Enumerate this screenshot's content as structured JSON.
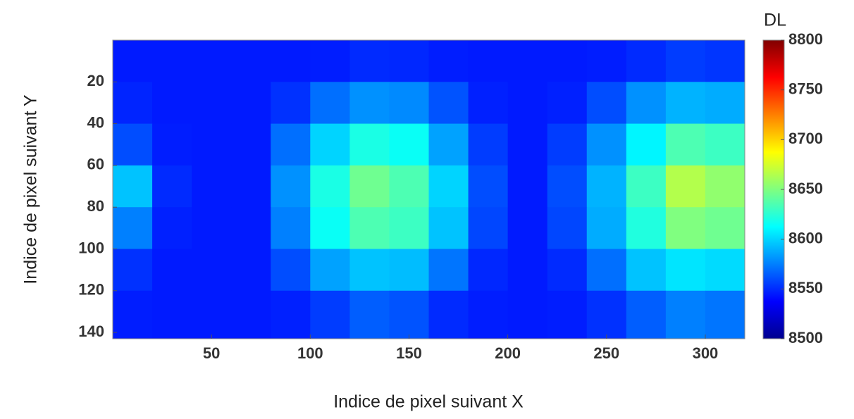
{
  "chart_data": {
    "type": "heatmap",
    "x_label": "Indice de pixel suivant X",
    "y_label": "Indice de pixel suivant Y",
    "colorbar_label": "DL",
    "x": [
      10,
      30,
      50,
      70,
      90,
      110,
      130,
      150,
      170,
      190,
      210,
      230,
      250,
      270,
      290,
      310
    ],
    "y": [
      10,
      30,
      50,
      70,
      90,
      110,
      130
    ],
    "values": [
      [
        8545,
        8545,
        8545,
        8545,
        8545,
        8546,
        8550,
        8549,
        8546,
        8545,
        8545,
        8545,
        8546,
        8550,
        8555,
        8553
      ],
      [
        8548,
        8545,
        8545,
        8545,
        8552,
        8570,
        8580,
        8578,
        8562,
        8547,
        8545,
        8547,
        8560,
        8580,
        8590,
        8588
      ],
      [
        8560,
        8546,
        8545,
        8545,
        8570,
        8600,
        8620,
        8615,
        8585,
        8555,
        8545,
        8555,
        8580,
        8610,
        8635,
        8630
      ],
      [
        8595,
        8550,
        8545,
        8545,
        8580,
        8620,
        8645,
        8635,
        8600,
        8560,
        8545,
        8560,
        8590,
        8630,
        8665,
        8655
      ],
      [
        8575,
        8547,
        8545,
        8545,
        8575,
        8615,
        8635,
        8630,
        8595,
        8558,
        8545,
        8558,
        8588,
        8622,
        8650,
        8645
      ],
      [
        8552,
        8545,
        8545,
        8545,
        8560,
        8585,
        8595,
        8593,
        8572,
        8549,
        8545,
        8550,
        8570,
        8595,
        8605,
        8602
      ],
      [
        8546,
        8545,
        8545,
        8545,
        8547,
        8555,
        8565,
        8562,
        8550,
        8546,
        8545,
        8546,
        8552,
        8565,
        8575,
        8572
      ]
    ],
    "xlim": [
      0,
      320
    ],
    "ylim": [
      143,
      0
    ],
    "xticks": [
      50,
      100,
      150,
      200,
      250,
      300
    ],
    "yticks": [
      20,
      40,
      60,
      80,
      100,
      120,
      140
    ],
    "colormap": "jet",
    "clim": [
      8500,
      8800
    ],
    "cticks": [
      8500,
      8550,
      8600,
      8650,
      8700,
      8750,
      8800
    ]
  }
}
